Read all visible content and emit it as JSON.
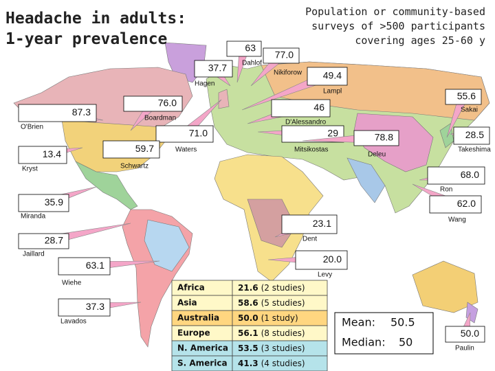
{
  "title": [
    "Headache in adults:",
    "1-year prevalence"
  ],
  "subtitle": [
    "Population or community-based",
    "surveys of >500 participants",
    "covering ages 25-60 y"
  ],
  "callouts": [
    {
      "value": "63",
      "author": "Dahlof"
    },
    {
      "value": "77.0",
      "author": "Nikiforow"
    },
    {
      "value": "37.7",
      "author": "Hagen"
    },
    {
      "value": "49.4",
      "author": "Lampl"
    },
    {
      "value": "55.6",
      "author": "Sakai"
    },
    {
      "value": "76.0",
      "author": "Boardman"
    },
    {
      "value": "46",
      "author": "D'Alessandro"
    },
    {
      "value": "87.3",
      "author": "O'Brien"
    },
    {
      "value": "71.0",
      "author": "Waters"
    },
    {
      "value": "29",
      "author": "Mitsikostas"
    },
    {
      "value": "78.8",
      "author": "Deleu"
    },
    {
      "value": "28.5",
      "author": "Takeshima"
    },
    {
      "value": "13.4",
      "author": "Kryst"
    },
    {
      "value": "59.7",
      "author": "Schwartz"
    },
    {
      "value": "68.0",
      "author": "Ron"
    },
    {
      "value": "35.9",
      "author": "Miranda"
    },
    {
      "value": "62.0",
      "author": "Wang"
    },
    {
      "value": "23.1",
      "author": "Dent"
    },
    {
      "value": "28.7",
      "author": "Jaillard"
    },
    {
      "value": "20.0",
      "author": "Levy"
    },
    {
      "value": "63.1",
      "author": "Wiehe"
    },
    {
      "value": "37.3",
      "author": "Lavados"
    },
    {
      "value": "50.0",
      "author": "Paulin"
    }
  ],
  "table": {
    "rows": [
      [
        "Africa",
        "21.6",
        "(2 studies)"
      ],
      [
        "Asia",
        "58.6",
        "(5 studies)"
      ],
      [
        "Australia",
        "50.0",
        "(1 study)"
      ],
      [
        "Europe",
        "56.1",
        "(8 studies)"
      ],
      [
        "N. America",
        "53.5",
        "(3 studies)"
      ],
      [
        "S. America",
        "41.3",
        "(4 studies)"
      ]
    ]
  },
  "summary": {
    "mean_label": "Mean:",
    "mean": "50.5",
    "median_label": "Median:",
    "median": "50"
  }
}
